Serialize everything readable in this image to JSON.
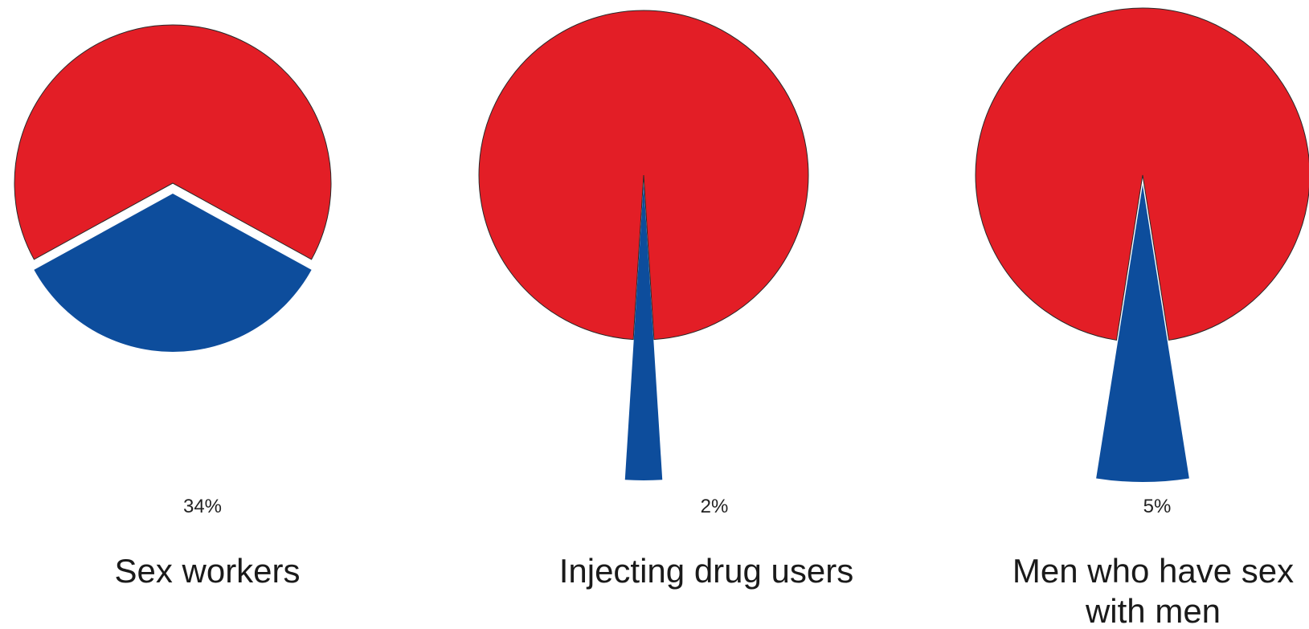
{
  "colors": {
    "main": "#e31e26",
    "highlight": "#0d4d9c",
    "outline": "#2a2a2a",
    "background": "#ffffff"
  },
  "chart_data": [
    {
      "type": "pie",
      "slices": [
        {
          "value": 34,
          "color": "#0d4d9c",
          "exploded": true
        },
        {
          "value": 66,
          "color": "#e31e26",
          "exploded": false
        }
      ],
      "value_label": "34%",
      "category_label": [
        "Sex workers"
      ]
    },
    {
      "type": "pie",
      "slices": [
        {
          "value": 2,
          "color": "#0d4d9c",
          "exploded": true
        },
        {
          "value": 98,
          "color": "#e31e26",
          "exploded": false
        }
      ],
      "value_label": "2%",
      "category_label": [
        "Injecting drug users"
      ]
    },
    {
      "type": "pie",
      "slices": [
        {
          "value": 5,
          "color": "#0d4d9c",
          "exploded": true
        },
        {
          "value": 95,
          "color": "#e31e26",
          "exploded": false
        }
      ],
      "value_label": "5%",
      "category_label": [
        "Men who have sex",
        "with men"
      ]
    }
  ]
}
